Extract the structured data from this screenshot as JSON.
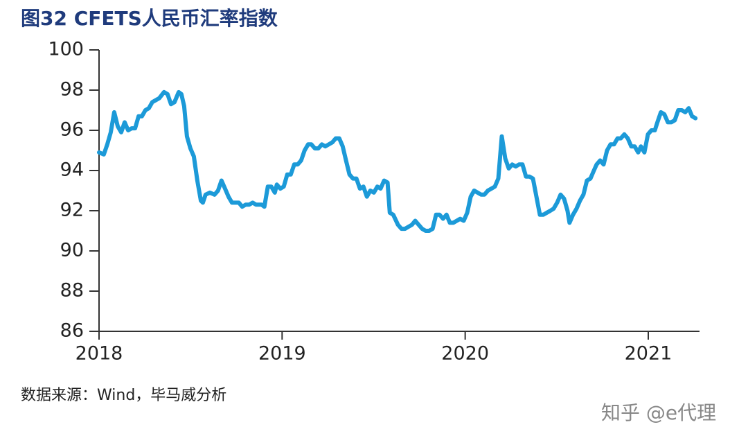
{
  "chart_data": {
    "type": "line",
    "title": "图32 CFETS人民币汇率指数",
    "source": "数据来源：Wind，毕马威分析",
    "watermark": "知乎 @e代理",
    "x": [
      2018.0,
      2018.026,
      2018.045,
      2018.064,
      2018.083,
      2018.102,
      2018.121,
      2018.14,
      2018.159,
      2018.178,
      2018.197,
      2018.216,
      2018.234,
      2018.253,
      2018.272,
      2018.291,
      2018.329,
      2018.355,
      2018.374,
      2018.393,
      2018.412,
      2018.435,
      2018.45,
      2018.465,
      2018.48,
      2018.499,
      2018.518,
      2018.537,
      2018.556,
      2018.567,
      2018.582,
      2018.605,
      2018.631,
      2018.65,
      2018.669,
      2018.688,
      2018.707,
      2018.726,
      2018.745,
      2018.764,
      2018.782,
      2018.801,
      2018.82,
      2018.839,
      2018.858,
      2018.888,
      2018.903,
      2018.922,
      2018.941,
      2018.96,
      2018.971,
      2018.99,
      2019.009,
      2019.028,
      2019.047,
      2019.066,
      2019.085,
      2019.104,
      2019.123,
      2019.142,
      2019.16,
      2019.179,
      2019.198,
      2019.217,
      2019.236,
      2019.255,
      2019.274,
      2019.293,
      2019.312,
      2019.331,
      2019.349,
      2019.368,
      2019.387,
      2019.406,
      2019.425,
      2019.444,
      2019.463,
      2019.482,
      2019.501,
      2019.52,
      2019.538,
      2019.557,
      2019.576,
      2019.588,
      2019.607,
      2019.633,
      2019.652,
      2019.671,
      2019.69,
      2019.709,
      2019.727,
      2019.746,
      2019.765,
      2019.784,
      2019.803,
      2019.822,
      2019.841,
      2019.86,
      2019.879,
      2019.898,
      2019.916,
      2019.935,
      2019.954,
      2019.973,
      2019.992,
      2020.011,
      2020.03,
      2020.049,
      2020.068,
      2020.087,
      2020.105,
      2020.124,
      2020.143,
      2020.162,
      2020.181,
      2020.2,
      2020.219,
      2020.238,
      2020.257,
      2020.276,
      2020.294,
      2020.313,
      2020.332,
      2020.351,
      2020.37,
      2020.389,
      2020.408,
      2020.427,
      2020.446,
      2020.465,
      2020.483,
      2020.502,
      2020.521,
      2020.54,
      2020.559,
      2020.57,
      2020.589,
      2020.608,
      2020.627,
      2020.646,
      2020.665,
      2020.684,
      2020.703,
      2020.718,
      2020.737,
      2020.756,
      2020.775,
      2020.794,
      2020.813,
      2020.832,
      2020.85,
      2020.869,
      2020.888,
      2020.907,
      2020.926,
      2020.945,
      2020.96,
      2020.979,
      2020.998,
      2021.017,
      2021.036,
      2021.05,
      2021.069,
      2021.088,
      2021.107,
      2021.126,
      2021.145,
      2021.164,
      2021.183,
      2021.202,
      2021.221,
      2021.239,
      2021.258
    ],
    "series": [
      {
        "name": "CFETS人民币汇率指数",
        "color": "#1c9ad8",
        "values": [
          94.9,
          94.8,
          95.3,
          95.9,
          96.9,
          96.2,
          95.9,
          96.4,
          96.0,
          96.1,
          96.1,
          96.7,
          96.7,
          97.0,
          97.1,
          97.4,
          97.6,
          97.9,
          97.8,
          97.3,
          97.4,
          97.9,
          97.8,
          97.2,
          95.7,
          95.1,
          94.7,
          93.5,
          92.5,
          92.4,
          92.8,
          92.9,
          92.8,
          93.0,
          93.5,
          93.1,
          92.7,
          92.4,
          92.4,
          92.4,
          92.2,
          92.3,
          92.3,
          92.4,
          92.3,
          92.3,
          92.2,
          93.2,
          93.2,
          92.9,
          93.3,
          93.1,
          93.2,
          93.8,
          93.8,
          94.3,
          94.3,
          94.5,
          95.0,
          95.3,
          95.3,
          95.1,
          95.1,
          95.3,
          95.2,
          95.3,
          95.4,
          95.6,
          95.6,
          95.2,
          94.5,
          93.8,
          93.6,
          93.6,
          93.1,
          93.2,
          92.7,
          93.0,
          92.9,
          93.2,
          93.1,
          93.5,
          93.4,
          91.9,
          91.8,
          91.3,
          91.1,
          91.1,
          91.2,
          91.3,
          91.5,
          91.3,
          91.1,
          91.0,
          91.0,
          91.1,
          91.8,
          91.8,
          91.6,
          91.8,
          91.4,
          91.4,
          91.5,
          91.6,
          91.5,
          91.9,
          92.7,
          93.0,
          92.9,
          92.8,
          92.8,
          93.0,
          93.1,
          93.2,
          93.6,
          95.7,
          94.6,
          94.1,
          94.3,
          94.2,
          94.3,
          94.3,
          93.7,
          93.7,
          93.6,
          92.7,
          91.8,
          91.8,
          91.9,
          92.0,
          92.1,
          92.4,
          92.8,
          92.6,
          92.0,
          91.4,
          91.8,
          92.1,
          92.5,
          92.8,
          93.5,
          93.6,
          94.0,
          94.3,
          94.5,
          94.3,
          95.0,
          95.3,
          95.3,
          95.6,
          95.6,
          95.8,
          95.6,
          95.2,
          95.2,
          94.9,
          95.2,
          94.9,
          95.8,
          96.0,
          96.0,
          96.4,
          96.9,
          96.8,
          96.4,
          96.4,
          96.5,
          97.0,
          97.0,
          96.9,
          97.1,
          96.7,
          96.6
        ]
      }
    ],
    "xlim": [
      2018,
      2021.28
    ],
    "xticks": [
      2018,
      2019,
      2020,
      2021
    ],
    "ylim": [
      86,
      100
    ],
    "yticks": [
      86,
      88,
      90,
      92,
      94,
      96,
      98,
      100
    ],
    "grid": false,
    "legend": false
  }
}
